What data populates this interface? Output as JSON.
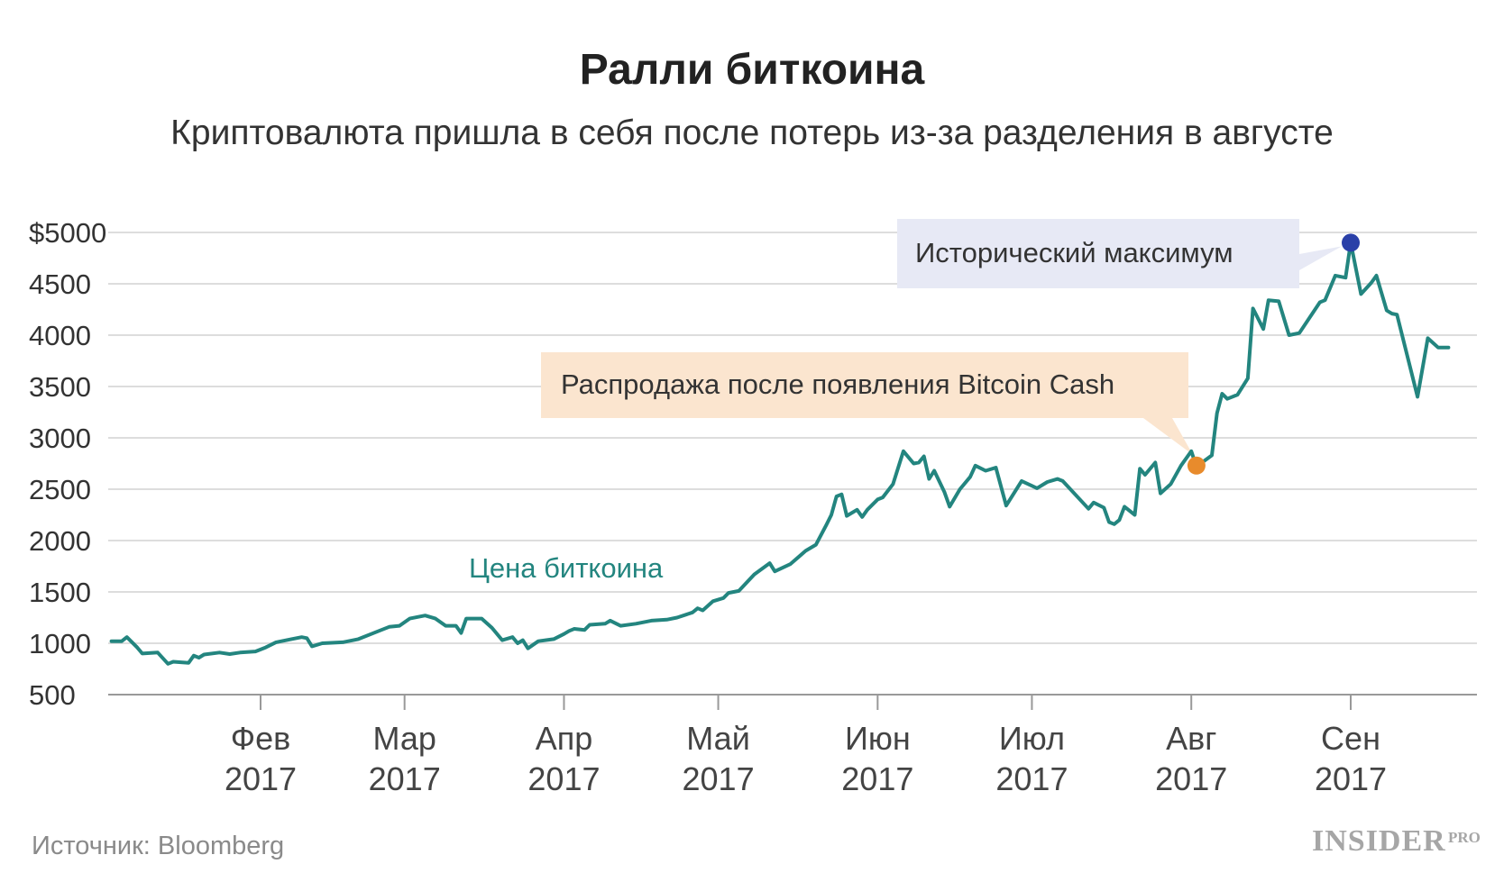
{
  "title": "Ралли биткоина",
  "subtitle": "Криптовалюта пришла в себя после потерь из-за разделения в августе",
  "source": "Источник: Bloomberg",
  "logo": {
    "main": "INSIDER",
    "sub": "PRO"
  },
  "colors": {
    "line": "#23857f",
    "grid": "#dddddd",
    "axis": "#999999",
    "peak_marker": "#2a40a8",
    "split_marker": "#e88b2c",
    "peak_note_bg": "#e7e9f5",
    "split_note_bg": "#fbe5cf"
  },
  "chart_data": {
    "type": "line",
    "title": "Ралли биткоина",
    "subtitle": "Криптовалюта пришла в себя после потерь из-за разделения в августе",
    "ylim": [
      500,
      5000
    ],
    "y_ticks": [
      500,
      1000,
      1500,
      2000,
      2500,
      3000,
      3500,
      4000,
      4500,
      5000
    ],
    "y_tick_labels": [
      "500",
      "1000",
      "1500",
      "2000",
      "2500",
      "3000",
      "3500",
      "4000",
      "4500",
      "$5000"
    ],
    "x_ticks": [
      {
        "date": "2017-02-01",
        "label1": "Фев",
        "label2": "2017"
      },
      {
        "date": "2017-03-01",
        "label1": "Мар",
        "label2": "2017"
      },
      {
        "date": "2017-04-01",
        "label1": "Апр",
        "label2": "2017"
      },
      {
        "date": "2017-05-01",
        "label1": "Май",
        "label2": "2017"
      },
      {
        "date": "2017-06-01",
        "label1": "Июн",
        "label2": "2017"
      },
      {
        "date": "2017-07-01",
        "label1": "Июл",
        "label2": "2017"
      },
      {
        "date": "2017-08-01",
        "label1": "Авг",
        "label2": "2017"
      },
      {
        "date": "2017-09-01",
        "label1": "Сен",
        "label2": "2017"
      }
    ],
    "grid": true,
    "series": [
      {
        "name": "Цена биткоина",
        "points": [
          [
            "2017-01-03",
            1020
          ],
          [
            "2017-01-05",
            1020
          ],
          [
            "2017-01-06",
            1060
          ],
          [
            "2017-01-08",
            960
          ],
          [
            "2017-01-09",
            900
          ],
          [
            "2017-01-12",
            910
          ],
          [
            "2017-01-14",
            800
          ],
          [
            "2017-01-15",
            820
          ],
          [
            "2017-01-18",
            810
          ],
          [
            "2017-01-19",
            880
          ],
          [
            "2017-01-20",
            860
          ],
          [
            "2017-01-21",
            890
          ],
          [
            "2017-01-24",
            910
          ],
          [
            "2017-01-26",
            895
          ],
          [
            "2017-01-28",
            910
          ],
          [
            "2017-01-31",
            920
          ],
          [
            "2017-02-02",
            960
          ],
          [
            "2017-02-04",
            1010
          ],
          [
            "2017-02-07",
            1040
          ],
          [
            "2017-02-09",
            1060
          ],
          [
            "2017-02-10",
            1050
          ],
          [
            "2017-02-11",
            970
          ],
          [
            "2017-02-13",
            1000
          ],
          [
            "2017-02-17",
            1010
          ],
          [
            "2017-02-20",
            1040
          ],
          [
            "2017-02-24",
            1120
          ],
          [
            "2017-02-26",
            1160
          ],
          [
            "2017-02-28",
            1170
          ],
          [
            "2017-03-02",
            1240
          ],
          [
            "2017-03-05",
            1270
          ],
          [
            "2017-03-07",
            1240
          ],
          [
            "2017-03-09",
            1170
          ],
          [
            "2017-03-11",
            1170
          ],
          [
            "2017-03-12",
            1100
          ],
          [
            "2017-03-13",
            1240
          ],
          [
            "2017-03-16",
            1240
          ],
          [
            "2017-03-18",
            1150
          ],
          [
            "2017-03-20",
            1030
          ],
          [
            "2017-03-22",
            1060
          ],
          [
            "2017-03-23",
            1000
          ],
          [
            "2017-03-24",
            1030
          ],
          [
            "2017-03-25",
            950
          ],
          [
            "2017-03-27",
            1020
          ],
          [
            "2017-03-30",
            1040
          ],
          [
            "2017-04-01",
            1090
          ],
          [
            "2017-04-02",
            1120
          ],
          [
            "2017-04-03",
            1140
          ],
          [
            "2017-04-05",
            1130
          ],
          [
            "2017-04-06",
            1180
          ],
          [
            "2017-04-09",
            1190
          ],
          [
            "2017-04-10",
            1220
          ],
          [
            "2017-04-12",
            1170
          ],
          [
            "2017-04-15",
            1190
          ],
          [
            "2017-04-18",
            1220
          ],
          [
            "2017-04-21",
            1230
          ],
          [
            "2017-04-23",
            1250
          ],
          [
            "2017-04-26",
            1300
          ],
          [
            "2017-04-27",
            1340
          ],
          [
            "2017-04-28",
            1320
          ],
          [
            "2017-04-30",
            1410
          ],
          [
            "2017-05-02",
            1440
          ],
          [
            "2017-05-03",
            1490
          ],
          [
            "2017-05-05",
            1510
          ],
          [
            "2017-05-08",
            1670
          ],
          [
            "2017-05-11",
            1780
          ],
          [
            "2017-05-12",
            1700
          ],
          [
            "2017-05-15",
            1770
          ],
          [
            "2017-05-18",
            1900
          ],
          [
            "2017-05-20",
            1960
          ],
          [
            "2017-05-22",
            2150
          ],
          [
            "2017-05-23",
            2250
          ],
          [
            "2017-05-24",
            2430
          ],
          [
            "2017-05-25",
            2450
          ],
          [
            "2017-05-26",
            2240
          ],
          [
            "2017-05-28",
            2300
          ],
          [
            "2017-05-29",
            2230
          ],
          [
            "2017-05-30",
            2300
          ],
          [
            "2017-06-01",
            2400
          ],
          [
            "2017-06-02",
            2420
          ],
          [
            "2017-06-04",
            2550
          ],
          [
            "2017-06-06",
            2870
          ],
          [
            "2017-06-08",
            2750
          ],
          [
            "2017-06-09",
            2760
          ],
          [
            "2017-06-10",
            2820
          ],
          [
            "2017-06-11",
            2600
          ],
          [
            "2017-06-12",
            2680
          ],
          [
            "2017-06-14",
            2470
          ],
          [
            "2017-06-15",
            2330
          ],
          [
            "2017-06-17",
            2500
          ],
          [
            "2017-06-19",
            2620
          ],
          [
            "2017-06-20",
            2730
          ],
          [
            "2017-06-22",
            2680
          ],
          [
            "2017-06-24",
            2710
          ],
          [
            "2017-06-26",
            2340
          ],
          [
            "2017-06-29",
            2580
          ],
          [
            "2017-07-02",
            2510
          ],
          [
            "2017-07-04",
            2570
          ],
          [
            "2017-07-06",
            2600
          ],
          [
            "2017-07-07",
            2580
          ],
          [
            "2017-07-12",
            2310
          ],
          [
            "2017-07-13",
            2370
          ],
          [
            "2017-07-15",
            2320
          ],
          [
            "2017-07-16",
            2180
          ],
          [
            "2017-07-17",
            2160
          ],
          [
            "2017-07-18",
            2200
          ],
          [
            "2017-07-19",
            2330
          ],
          [
            "2017-07-21",
            2250
          ],
          [
            "2017-07-22",
            2700
          ],
          [
            "2017-07-23",
            2640
          ],
          [
            "2017-07-25",
            2760
          ],
          [
            "2017-07-26",
            2460
          ],
          [
            "2017-07-28",
            2550
          ],
          [
            "2017-07-30",
            2730
          ],
          [
            "2017-08-01",
            2870
          ],
          [
            "2017-08-02",
            2720
          ],
          [
            "2017-08-05",
            2830
          ],
          [
            "2017-08-06",
            3240
          ],
          [
            "2017-08-07",
            3430
          ],
          [
            "2017-08-08",
            3380
          ],
          [
            "2017-08-10",
            3420
          ],
          [
            "2017-08-12",
            3580
          ],
          [
            "2017-08-13",
            4260
          ],
          [
            "2017-08-15",
            4060
          ],
          [
            "2017-08-16",
            4340
          ],
          [
            "2017-08-18",
            4330
          ],
          [
            "2017-08-20",
            4000
          ],
          [
            "2017-08-22",
            4020
          ],
          [
            "2017-08-26",
            4320
          ],
          [
            "2017-08-27",
            4340
          ],
          [
            "2017-08-29",
            4580
          ],
          [
            "2017-08-31",
            4560
          ],
          [
            "2017-09-01",
            4900
          ],
          [
            "2017-09-03",
            4400
          ],
          [
            "2017-09-05",
            4510
          ],
          [
            "2017-09-06",
            4580
          ],
          [
            "2017-09-08",
            4240
          ],
          [
            "2017-09-09",
            4210
          ],
          [
            "2017-09-10",
            4200
          ],
          [
            "2017-09-14",
            3400
          ],
          [
            "2017-09-16",
            3970
          ],
          [
            "2017-09-18",
            3880
          ],
          [
            "2017-09-20",
            3880
          ]
        ]
      }
    ],
    "series_label": "Цена биткоина",
    "annotations": [
      {
        "text": "Исторический максимум",
        "date": "2017-09-01",
        "value": 4900
      },
      {
        "text": "Распродажа после появления Bitcoin Cash",
        "date": "2017-08-02",
        "value": 2730
      }
    ]
  }
}
